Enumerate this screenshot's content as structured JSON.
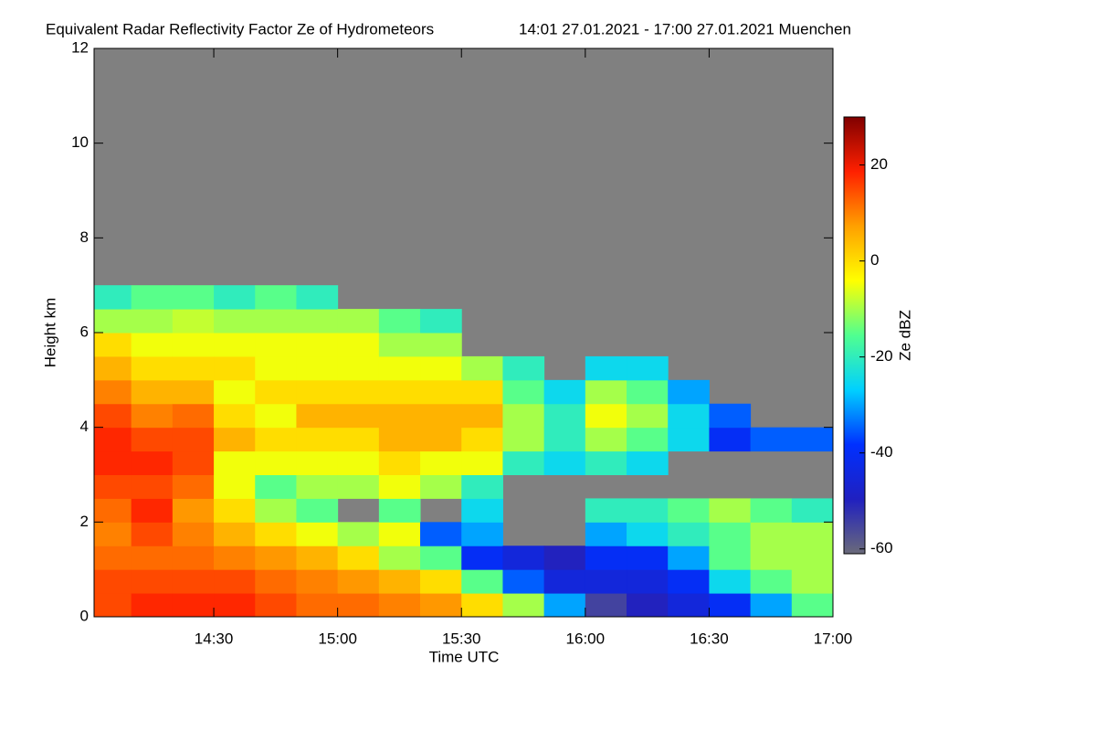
{
  "chart_data": {
    "type": "heatmap",
    "title": "Equivalent Radar Reflectivity Factor Ze of Hydrometeors",
    "subtitle": "14:01 27.01.2021 - 17:00 27.01.2021 Muenchen",
    "x_label": "Time UTC",
    "y_label": "Height km",
    "colorbar_label": "Ze dBZ",
    "xlim": [
      14.0167,
      17.0
    ],
    "xticks": [
      {
        "value": 14.5,
        "label": "14:30"
      },
      {
        "value": 15.0,
        "label": "15:00"
      },
      {
        "value": 15.5,
        "label": "15:30"
      },
      {
        "value": 16.0,
        "label": "16:00"
      },
      {
        "value": 16.5,
        "label": "16:30"
      },
      {
        "value": 17.0,
        "label": "17:00"
      }
    ],
    "ylim": [
      0,
      12
    ],
    "yticks": [
      0,
      2,
      4,
      6,
      8,
      10,
      12
    ],
    "zlim": [
      -61,
      30
    ],
    "zticks": [
      -60,
      -40,
      -20,
      0,
      20
    ],
    "nodata_color": "#808080",
    "colors": [
      "#6a6a7a",
      "#2020c0",
      "#0030ff",
      "#00d0ff",
      "#50ff90",
      "#ffff00",
      "#ffa000",
      "#ff2000",
      "#800000"
    ],
    "x_edges": [
      14.0167,
      14.1667,
      14.3333,
      14.5,
      14.6667,
      14.8333,
      15.0,
      15.1667,
      15.3333,
      15.5,
      15.6667,
      15.8333,
      16.0,
      16.1667,
      16.3333,
      16.5,
      16.6667,
      16.8333,
      17.0
    ],
    "y_edges": [
      0,
      0.5,
      1,
      1.5,
      2,
      2.5,
      3,
      3.5,
      4,
      4.5,
      5,
      5.5,
      6,
      6.5,
      7,
      7.5
    ],
    "values": [
      [
        15,
        15,
        12,
        10,
        12,
        15,
        18,
        18,
        15,
        10,
        5,
        0,
        -10,
        -20,
        null
      ],
      [
        18,
        15,
        12,
        15,
        18,
        15,
        18,
        15,
        10,
        5,
        0,
        -5,
        -10,
        -15,
        null
      ],
      [
        18,
        15,
        12,
        10,
        8,
        12,
        15,
        15,
        12,
        5,
        0,
        -5,
        -8,
        -15,
        null
      ],
      [
        18,
        15,
        10,
        5,
        0,
        -5,
        -5,
        5,
        0,
        -5,
        0,
        -5,
        -10,
        -20,
        null
      ],
      [
        15,
        12,
        8,
        0,
        -10,
        -15,
        -5,
        0,
        -5,
        0,
        -5,
        -5,
        -10,
        -15,
        null
      ],
      [
        12,
        10,
        5,
        -5,
        -15,
        -10,
        -5,
        0,
        5,
        0,
        -5,
        -5,
        -10,
        -20,
        null
      ],
      [
        12,
        8,
        0,
        -10,
        null,
        -10,
        -5,
        0,
        5,
        0,
        -5,
        -5,
        -10,
        null,
        null
      ],
      [
        10,
        5,
        -10,
        -5,
        -15,
        -5,
        0,
        5,
        5,
        0,
        -5,
        -10,
        -15,
        null,
        null
      ],
      [
        8,
        0,
        -15,
        -35,
        null,
        -10,
        -5,
        5,
        5,
        0,
        -5,
        -10,
        -20,
        null,
        null
      ],
      [
        0,
        -15,
        -40,
        -30,
        -25,
        -20,
        -5,
        0,
        5,
        0,
        -10,
        null,
        null,
        null,
        null
      ],
      [
        -10,
        -35,
        -45,
        null,
        null,
        null,
        -20,
        -10,
        -10,
        -15,
        -20,
        null,
        null,
        null,
        null
      ],
      [
        -30,
        -45,
        -50,
        null,
        null,
        null,
        -25,
        -20,
        -20,
        -25,
        null,
        null,
        null,
        null,
        null
      ],
      [
        -55,
        -45,
        -40,
        -30,
        -20,
        null,
        -20,
        -10,
        -5,
        -10,
        -25,
        null,
        null,
        null,
        null
      ],
      [
        -50,
        -45,
        -40,
        -25,
        -20,
        null,
        -25,
        -15,
        -10,
        -15,
        -25,
        null,
        null,
        null,
        null
      ],
      [
        -45,
        -40,
        -30,
        -20,
        -15,
        null,
        null,
        -25,
        -25,
        -30,
        null,
        null,
        null,
        null,
        null
      ],
      [
        -40,
        -25,
        -15,
        -15,
        -10,
        null,
        null,
        -40,
        -35,
        null,
        null,
        null,
        null,
        null,
        null
      ],
      [
        -30,
        -15,
        -10,
        -10,
        -15,
        null,
        null,
        -35,
        null,
        null,
        null,
        null,
        null,
        null,
        null
      ],
      [
        -15,
        -10,
        -10,
        -10,
        -20,
        null,
        null,
        -35,
        null,
        null,
        null,
        null,
        null,
        null,
        null
      ]
    ]
  }
}
